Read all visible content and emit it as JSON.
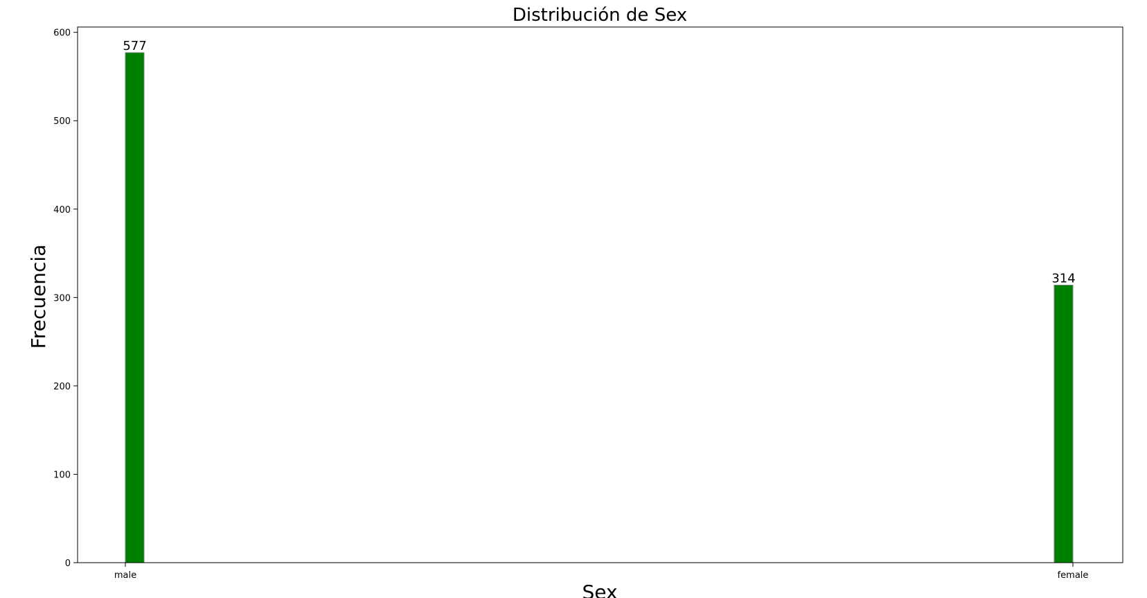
{
  "chart_data": {
    "type": "bar",
    "title": "Distribución de Sex",
    "xlabel": "Sex",
    "ylabel": "Frecuencia",
    "categories": [
      "male",
      "female"
    ],
    "values": [
      577,
      314
    ],
    "data_labels": [
      "577",
      "314"
    ],
    "y_ticks": [
      0,
      100,
      200,
      300,
      400,
      500,
      600
    ],
    "ylim": [
      0,
      606
    ],
    "grid": false,
    "legend": "none",
    "bar_color": "#008000",
    "bar_edge_color": "#808080"
  }
}
